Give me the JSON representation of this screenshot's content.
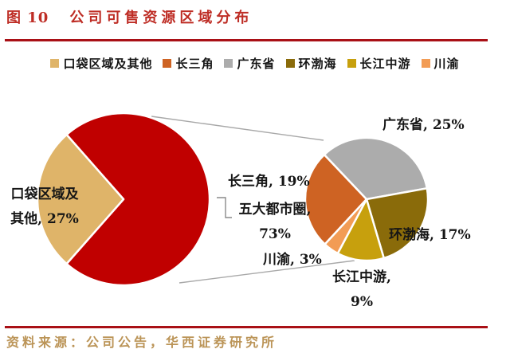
{
  "figure": {
    "tag": "图 10",
    "title": "公司可售资源区域分布"
  },
  "source": {
    "text": "资料来源：公司公告，华西证券研究所"
  },
  "colors": {
    "accent_red": "#BE2D25",
    "rule": "#A91016",
    "source_text": "#BB9457",
    "label_text": "#161616",
    "connector": "#A8A8A8",
    "slice_border": "#FFFFFF"
  },
  "chart_data": {
    "type": "pie",
    "subtype": "pie-of-pie",
    "title": "公司可售资源区域分布",
    "legend_position": "top",
    "legend": [
      {
        "label": "口袋区域及其他",
        "color": "#DFB469"
      },
      {
        "label": "长三角",
        "color": "#CE6323"
      },
      {
        "label": "广东省",
        "color": "#ACACAC"
      },
      {
        "label": "环渤海",
        "color": "#8A6B0A"
      },
      {
        "label": "长江中游",
        "color": "#C7A00D"
      },
      {
        "label": "川渝",
        "color": "#F29C55"
      }
    ],
    "main_pie": {
      "total": 100,
      "slices": [
        {
          "name": "五大都市圈",
          "value": 73,
          "color": "#C00000"
        },
        {
          "name": "口袋区域及其他",
          "value": 27,
          "color": "#DFB469"
        }
      ]
    },
    "secondary_pie": {
      "note": "breakdown of 五大都市圈 73%",
      "total": 73,
      "slices": [
        {
          "name": "长三角",
          "value": 19,
          "color": "#CE6323"
        },
        {
          "name": "广东省",
          "value": 25,
          "color": "#ACACAC"
        },
        {
          "name": "环渤海",
          "value": 17,
          "color": "#8A6B0A"
        },
        {
          "name": "长江中游",
          "value": 9,
          "color": "#C7A00D"
        },
        {
          "name": "川渝",
          "value": 3,
          "color": "#F29C55"
        }
      ]
    },
    "callouts": {
      "pocket": "口袋区域及\n其他, 27%",
      "changsanjiao": "长三角, 19%",
      "wudadushiquan": "五大都市圈,\n73%",
      "guangdong": "广东省, 25%",
      "huanbohai": "环渤海, 17%",
      "changjiang": "长江中游,\n9%",
      "chuanyu": "川渝, 3%"
    }
  }
}
